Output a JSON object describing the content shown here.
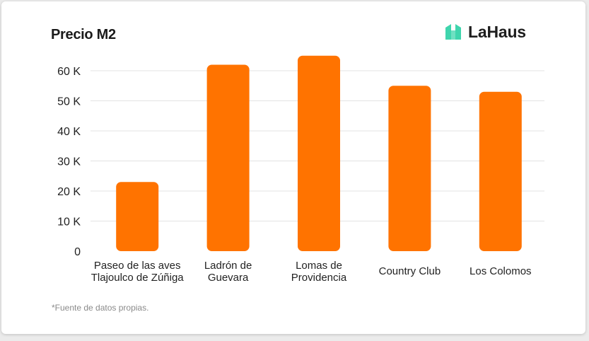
{
  "header": {
    "title": "Precio M2",
    "brand_name": "LaHaus"
  },
  "footnote": "*Fuente de datos propias.",
  "colors": {
    "bar": "#ff7300",
    "grid": "#e3e3e3",
    "logo": "#3fd5ad",
    "text": "#222222"
  },
  "chart_data": {
    "type": "bar",
    "title": "Precio M2",
    "categories": [
      [
        "Paseo de las aves",
        "Tlajoulco de Zúñiga"
      ],
      [
        "Ladrón de",
        "Guevara"
      ],
      [
        "Lomas de",
        "Providencia"
      ],
      [
        "Country Club"
      ],
      [
        "Los Colomos"
      ]
    ],
    "values": [
      23000,
      62000,
      65000,
      55000,
      53000
    ],
    "ylim": [
      0,
      60000
    ],
    "yticks": [
      0,
      10000,
      20000,
      30000,
      40000,
      50000,
      60000
    ],
    "ytick_labels": [
      "0",
      "10 K",
      "20 K",
      "30 K",
      "40 K",
      "50 K",
      "60 K"
    ],
    "grid": true,
    "legend": "none"
  }
}
